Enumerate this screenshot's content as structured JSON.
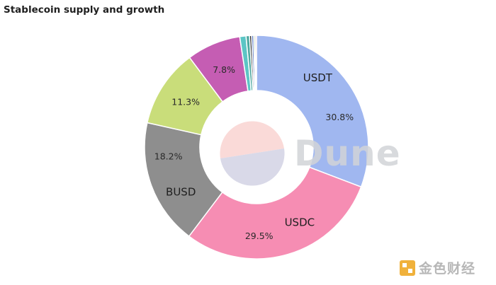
{
  "title": "Stablecoin supply and growth",
  "watermark": "Dune",
  "source_logo_text": "金色财经",
  "chart_data": {
    "type": "pie",
    "variant": "donut",
    "title": "Stablecoin supply and growth",
    "slices": [
      {
        "label": "USDT",
        "value": 30.8,
        "color": "#a0b7f0",
        "show_label": true,
        "show_value": true
      },
      {
        "label": "USDC",
        "value": 29.5,
        "color": "#f68db3",
        "show_label": true,
        "show_value": true
      },
      {
        "label": "BUSD",
        "value": 18.2,
        "color": "#8e8e8e",
        "show_label": true,
        "show_value": true
      },
      {
        "label": "",
        "value": 11.3,
        "color": "#c9dd7a",
        "show_label": false,
        "show_value": true
      },
      {
        "label": "",
        "value": 7.8,
        "color": "#c55db3",
        "show_label": false,
        "show_value": true
      },
      {
        "label": "",
        "value": 0.9,
        "color": "#5cc5c5",
        "show_label": false,
        "show_value": false
      },
      {
        "label": "",
        "value": 0.5,
        "color": "#4fa8a0",
        "show_label": false,
        "show_value": false
      },
      {
        "label": "",
        "value": 0.3,
        "color": "#2f2f2f",
        "show_label": false,
        "show_value": false
      },
      {
        "label": "",
        "value": 0.3,
        "color": "#6b86c9",
        "show_label": false,
        "show_value": false
      },
      {
        "label": "",
        "value": 0.2,
        "color": "#7fbf7f",
        "show_label": false,
        "show_value": false
      },
      {
        "label": "",
        "value": 0.2,
        "color": "#e6b0c4",
        "show_label": false,
        "show_value": false
      }
    ],
    "center_disc": {
      "top_color": "#fadad8",
      "bottom_color": "#d9d9e8"
    },
    "legend": "none"
  }
}
